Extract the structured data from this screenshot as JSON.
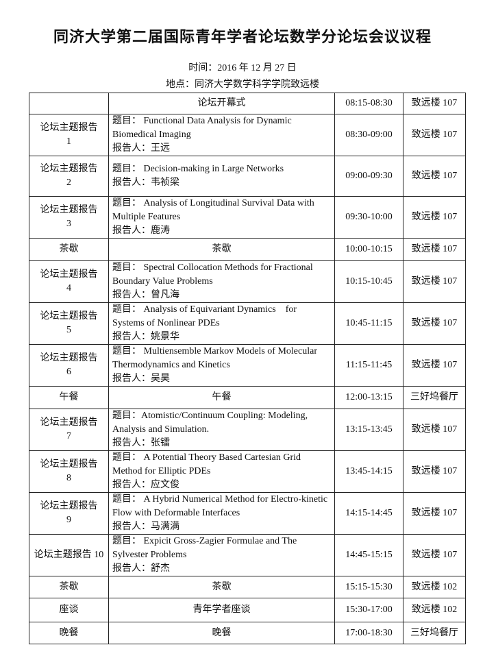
{
  "title": "同济大学第二届国际青年学者论坛数学分论坛会议议程",
  "time": "时间：2016 年 12 月 27 日",
  "place": "地点：同济大学数学科学学院致远楼",
  "rows": [
    {
      "h": 31,
      "session": "",
      "content": "论坛开幕式",
      "time": "08:15-08:30",
      "venue": "致远楼 107"
    },
    {
      "h": 60,
      "session": "论坛主题报告\n1",
      "topic": "题目： Functional Data Analysis for Dynamic Biomedical Imaging",
      "speaker": "报告人：王远",
      "time": "08:30-09:00",
      "venue": "致远楼 107"
    },
    {
      "h": 59,
      "session": "论坛主题报告\n2",
      "topic": "题目： Decision-making in Large Networks",
      "speaker": "报告人：韦祯梁",
      "time": "09:00-09:30",
      "venue": "致远楼 107"
    },
    {
      "h": 59,
      "session": "论坛主题报告\n3",
      "topic": "题目： Analysis of Longitudinal Survival Data with Multiple Features",
      "speaker": "报告人：鹿涛",
      "time": "09:30-10:00",
      "venue": "致远楼 107"
    },
    {
      "h": 33,
      "session": "茶歇",
      "content": "茶歇",
      "time": "10:00-10:15",
      "venue": "致远楼 107"
    },
    {
      "h": 59,
      "session": "论坛主题报告\n4",
      "topic": "题目： Spectral Collocation Methods for Fractional Boundary Value Problems",
      "speaker": "报告人：曾凡海",
      "time": "10:15-10:45",
      "venue": "致远楼 107"
    },
    {
      "h": 60,
      "session": "论坛主题报告\n5",
      "topic": "题目： Analysis of Equivariant Dynamics    for Systems of Nonlinear PDEs",
      "speaker": "报告人：姚景华",
      "time": "10:45-11:15",
      "venue": "致远楼 107"
    },
    {
      "h": 60,
      "session": "论坛主题报告\n6",
      "topic": "题目： Multiensemble Markov Models of Molecular Thermodynamics and Kinetics",
      "speaker": "报告人：吴昊",
      "time": "11:15-11:45",
      "venue": "致远楼 107"
    },
    {
      "h": 33,
      "session": "午餐",
      "content": "午餐",
      "time": "12:00-13:15",
      "venue": "三好坞餐厅"
    },
    {
      "h": 60,
      "session": "论坛主题报告\n7",
      "topic": "题目：Atomistic/Continuum Coupling: Modeling, Analysis and Simulation.",
      "speaker": "报告人：张镭",
      "time": "13:15-13:45",
      "venue": "致远楼 107"
    },
    {
      "h": 60,
      "session": "论坛主题报告\n8",
      "topic": "题目： A Potential Theory Based Cartesian Grid Method for Elliptic PDEs",
      "speaker": "报告人：应文俊",
      "time": "13:45-14:15",
      "venue": "致远楼 107"
    },
    {
      "h": 60,
      "session": "论坛主题报告\n9",
      "topic": "题目： A Hybrid Numerical Method for Electro-kinetic Flow with Deformable Interfaces",
      "speaker": "报告人：马满满",
      "time": "14:15-14:45",
      "venue": "致远楼 107"
    },
    {
      "h": 60,
      "session": "论坛主题报告 10",
      "topic": "题目： Expicit Gross-Zagier Formulae and The Sylvester Problems",
      "speaker": "报告人：舒杰",
      "time": "14:45-15:15",
      "venue": "致远楼 107"
    },
    {
      "h": 32,
      "session": "茶歇",
      "content": "茶歇",
      "time": "15:15-15:30",
      "venue": "致远楼 102"
    },
    {
      "h": 35,
      "session": "座谈",
      "content": "青年学者座谈",
      "time": "15:30-17:00",
      "venue": "致远楼 102"
    },
    {
      "h": 32,
      "session": "晚餐",
      "content": "晚餐",
      "time": "17:00-18:30",
      "venue": "三好坞餐厅"
    }
  ]
}
